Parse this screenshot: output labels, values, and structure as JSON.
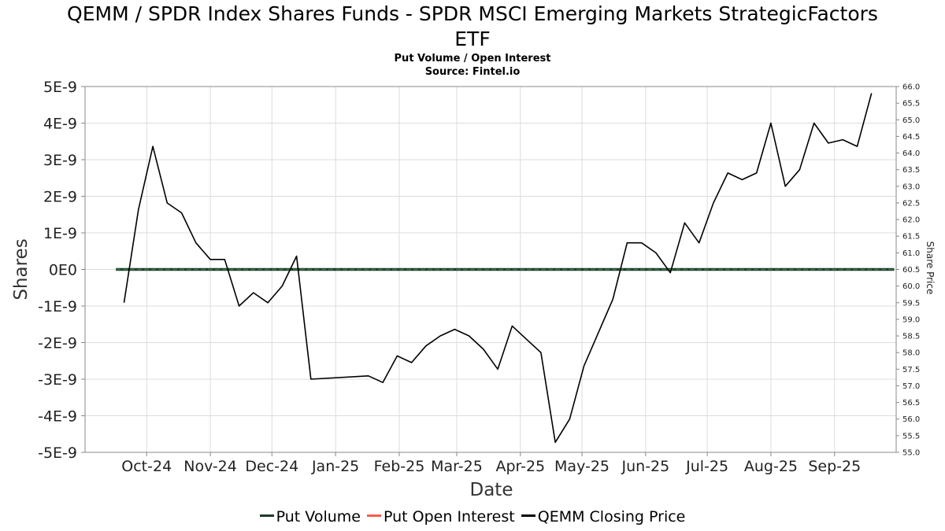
{
  "title_line1": "QEMM / SPDR Index Shares Funds - SPDR MSCI Emerging Markets StrategicFactors",
  "title_line2": "ETF",
  "subtitle": "Put Volume / Open Interest",
  "source": "Source: Fintel.io",
  "legend": [
    {
      "label": "Put Volume",
      "color": "#1f3a2a"
    },
    {
      "label": "Put Open Interest",
      "color": "#ff5a4e"
    },
    {
      "label": "QEMM Closing Price",
      "color": "#000000"
    }
  ],
  "chart_data": {
    "type": "line",
    "xlabel": "Date",
    "ylabel": "Shares",
    "y2label": "Share Price",
    "x_ticks": [
      "Oct-24",
      "Nov-24",
      "Dec-24",
      "Jan-25",
      "Feb-25",
      "Mar-25",
      "Apr-25",
      "May-25",
      "Jun-25",
      "Jul-25",
      "Aug-25",
      "Sep-25"
    ],
    "y_ticks": [
      "5E-9",
      "4E-9",
      "3E-9",
      "2E-9",
      "1E-9",
      "0E0",
      "-1E-9",
      "-2E-9",
      "-3E-9",
      "-4E-9",
      "-5E-9"
    ],
    "ylim": [
      -5e-09,
      5e-09
    ],
    "y2_ticks": [
      "66.0",
      "65.5",
      "65.0",
      "64.5",
      "64.0",
      "63.5",
      "63.0",
      "62.5",
      "62.0",
      "61.5",
      "61.0",
      "60.5",
      "60.0",
      "59.5",
      "59.0",
      "58.5",
      "58.0",
      "57.5",
      "57.0",
      "56.5",
      "56.0",
      "55.5",
      "55.0"
    ],
    "y2lim": [
      55.0,
      66.0
    ],
    "grid": true,
    "legend_position": "bottom",
    "series": [
      {
        "name": "Put Volume",
        "axis": "left",
        "x": [
          "2024-09-16",
          "2025-09-30"
        ],
        "y": [
          0,
          0
        ]
      },
      {
        "name": "Put Open Interest",
        "axis": "left",
        "x": [
          "2024-09-16",
          "2025-09-30"
        ],
        "y": [
          0,
          0
        ]
      },
      {
        "name": "QEMM Closing Price",
        "axis": "right",
        "x": [
          "2024-09-20",
          "2024-09-27",
          "2024-10-04",
          "2024-10-11",
          "2024-10-18",
          "2024-10-25",
          "2024-11-01",
          "2024-11-08",
          "2024-11-15",
          "2024-11-22",
          "2024-11-29",
          "2024-12-06",
          "2024-12-13",
          "2024-12-20",
          "2025-01-17",
          "2025-01-24",
          "2025-01-31",
          "2025-02-07",
          "2025-02-14",
          "2025-02-21",
          "2025-02-28",
          "2025-03-07",
          "2025-03-14",
          "2025-03-21",
          "2025-03-28",
          "2025-04-04",
          "2025-04-11",
          "2025-04-18",
          "2025-04-25",
          "2025-05-02",
          "2025-05-09",
          "2025-05-16",
          "2025-05-23",
          "2025-05-30",
          "2025-06-06",
          "2025-06-13",
          "2025-06-20",
          "2025-06-27",
          "2025-07-04",
          "2025-07-11",
          "2025-07-18",
          "2025-07-25",
          "2025-08-01",
          "2025-08-08",
          "2025-08-15",
          "2025-08-22",
          "2025-08-29",
          "2025-09-05",
          "2025-09-12"
        ],
        "y": [
          59.5,
          62.3,
          64.2,
          62.5,
          62.2,
          61.3,
          60.8,
          60.8,
          59.4,
          59.8,
          59.5,
          60.0,
          60.9,
          57.2,
          57.3,
          57.1,
          57.9,
          57.7,
          58.2,
          58.5,
          58.7,
          58.5,
          58.1,
          57.5,
          58.8,
          58.4,
          58.0,
          55.3,
          56.0,
          57.6,
          58.6,
          59.6,
          61.3,
          61.3,
          61.0,
          60.4,
          61.9,
          61.3,
          62.5,
          63.4,
          63.2,
          63.4,
          64.9,
          63.0,
          63.5,
          64.9,
          64.3,
          64.4,
          64.2
        ]
      }
    ],
    "closing_price_last": {
      "x": "2025-09-19",
      "y": 65.8
    }
  }
}
